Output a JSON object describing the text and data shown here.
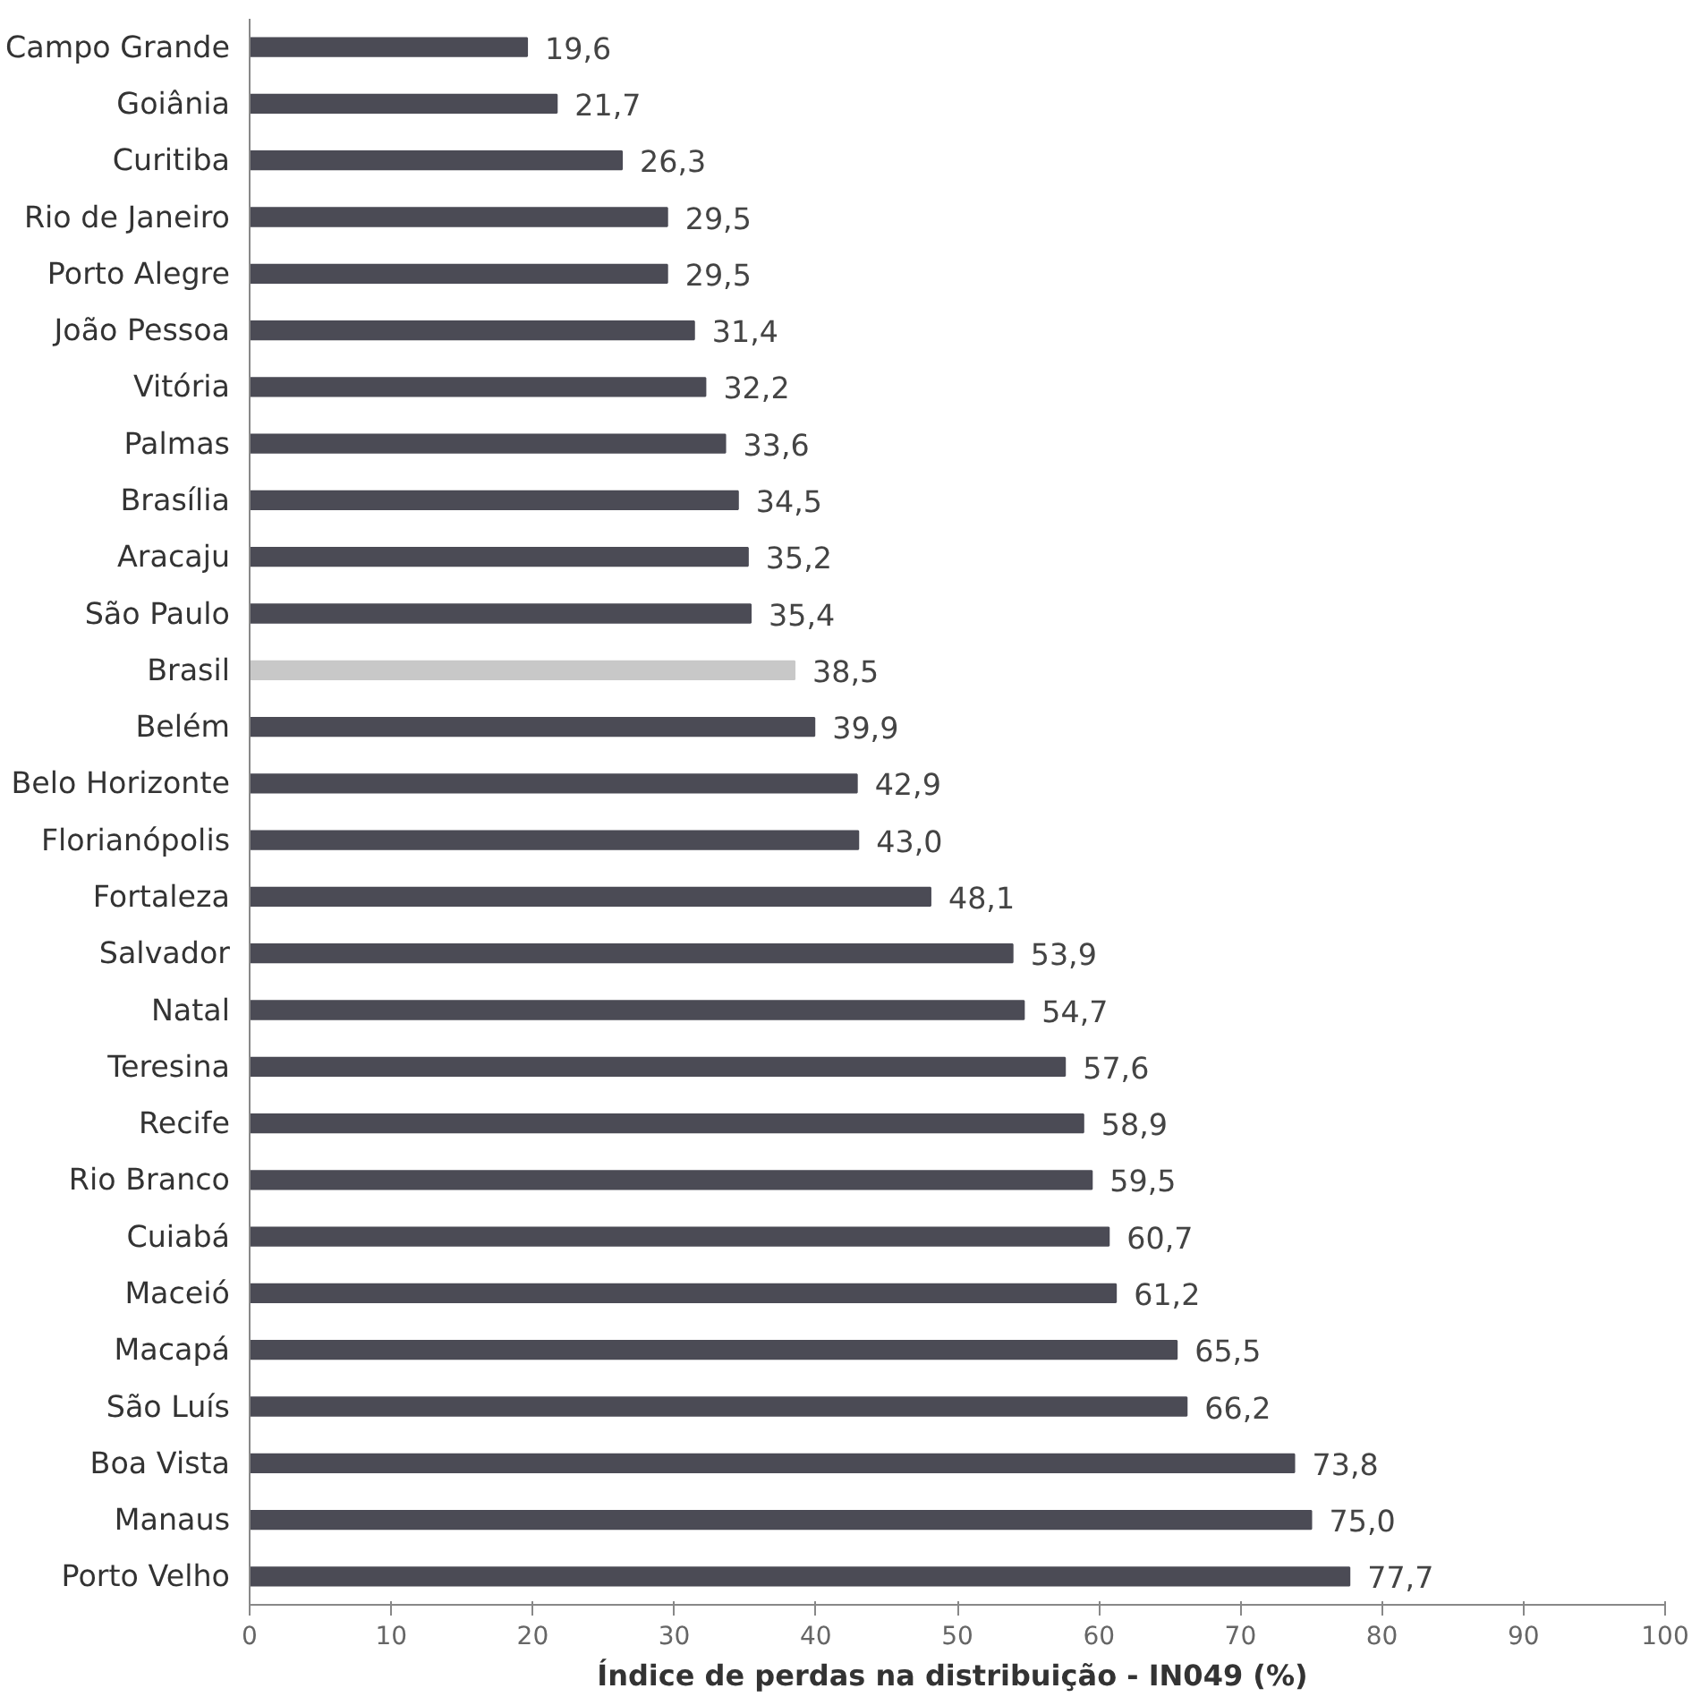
{
  "chart_data": {
    "type": "bar",
    "orientation": "horizontal",
    "xlabel": "Índice de perdas na distribuição - IN049  (%)",
    "categories": [
      "Campo Grande",
      "Goiânia",
      "Curitiba",
      "Rio de Janeiro",
      "Porto Alegre",
      "João Pessoa",
      "Vitória",
      "Palmas",
      "Brasília",
      "Aracaju",
      "São Paulo",
      "Brasil",
      "Belém",
      "Belo Horizonte",
      "Florianópolis",
      "Fortaleza",
      "Salvador",
      "Natal",
      "Teresina",
      "Recife",
      "Rio Branco",
      "Cuiabá",
      "Maceió",
      "Macapá",
      "São Luís",
      "Boa Vista",
      "Manaus",
      "Porto Velho"
    ],
    "values": [
      19.6,
      21.7,
      26.3,
      29.5,
      29.5,
      31.4,
      32.2,
      33.6,
      34.5,
      35.2,
      35.4,
      38.5,
      39.9,
      42.9,
      43.0,
      48.1,
      53.9,
      54.7,
      57.6,
      58.9,
      59.5,
      60.7,
      61.2,
      65.5,
      66.2,
      73.8,
      75.0,
      77.7
    ],
    "value_labels": [
      "19,6",
      "21,7",
      "26,3",
      "29,5",
      "29,5",
      "31,4",
      "32,2",
      "33,6",
      "34,5",
      "35,2",
      "35,4",
      "38,5",
      "39,9",
      "42,9",
      "43,0",
      "48,1",
      "53,9",
      "54,7",
      "57,6",
      "58,9",
      "59,5",
      "60,7",
      "61,2",
      "65,5",
      "66,2",
      "73,8",
      "75,0",
      "77,7"
    ],
    "colors": [
      "#4b4b55",
      "#4b4b55",
      "#4b4b55",
      "#4b4b55",
      "#4b4b55",
      "#4b4b55",
      "#4b4b55",
      "#4b4b55",
      "#4b4b55",
      "#4b4b55",
      "#4b4b55",
      "#c8c8c8",
      "#4b4b55",
      "#4b4b55",
      "#4b4b55",
      "#4b4b55",
      "#4b4b55",
      "#4b4b55",
      "#4b4b55",
      "#4b4b55",
      "#4b4b55",
      "#4b4b55",
      "#4b4b55",
      "#4b4b55",
      "#4b4b55",
      "#4b4b55",
      "#4b4b55",
      "#4b4b55"
    ],
    "xlim": [
      0,
      100
    ],
    "xticks": [
      0,
      10,
      20,
      30,
      40,
      50,
      60,
      70,
      80,
      90,
      100
    ],
    "grid": false
  }
}
